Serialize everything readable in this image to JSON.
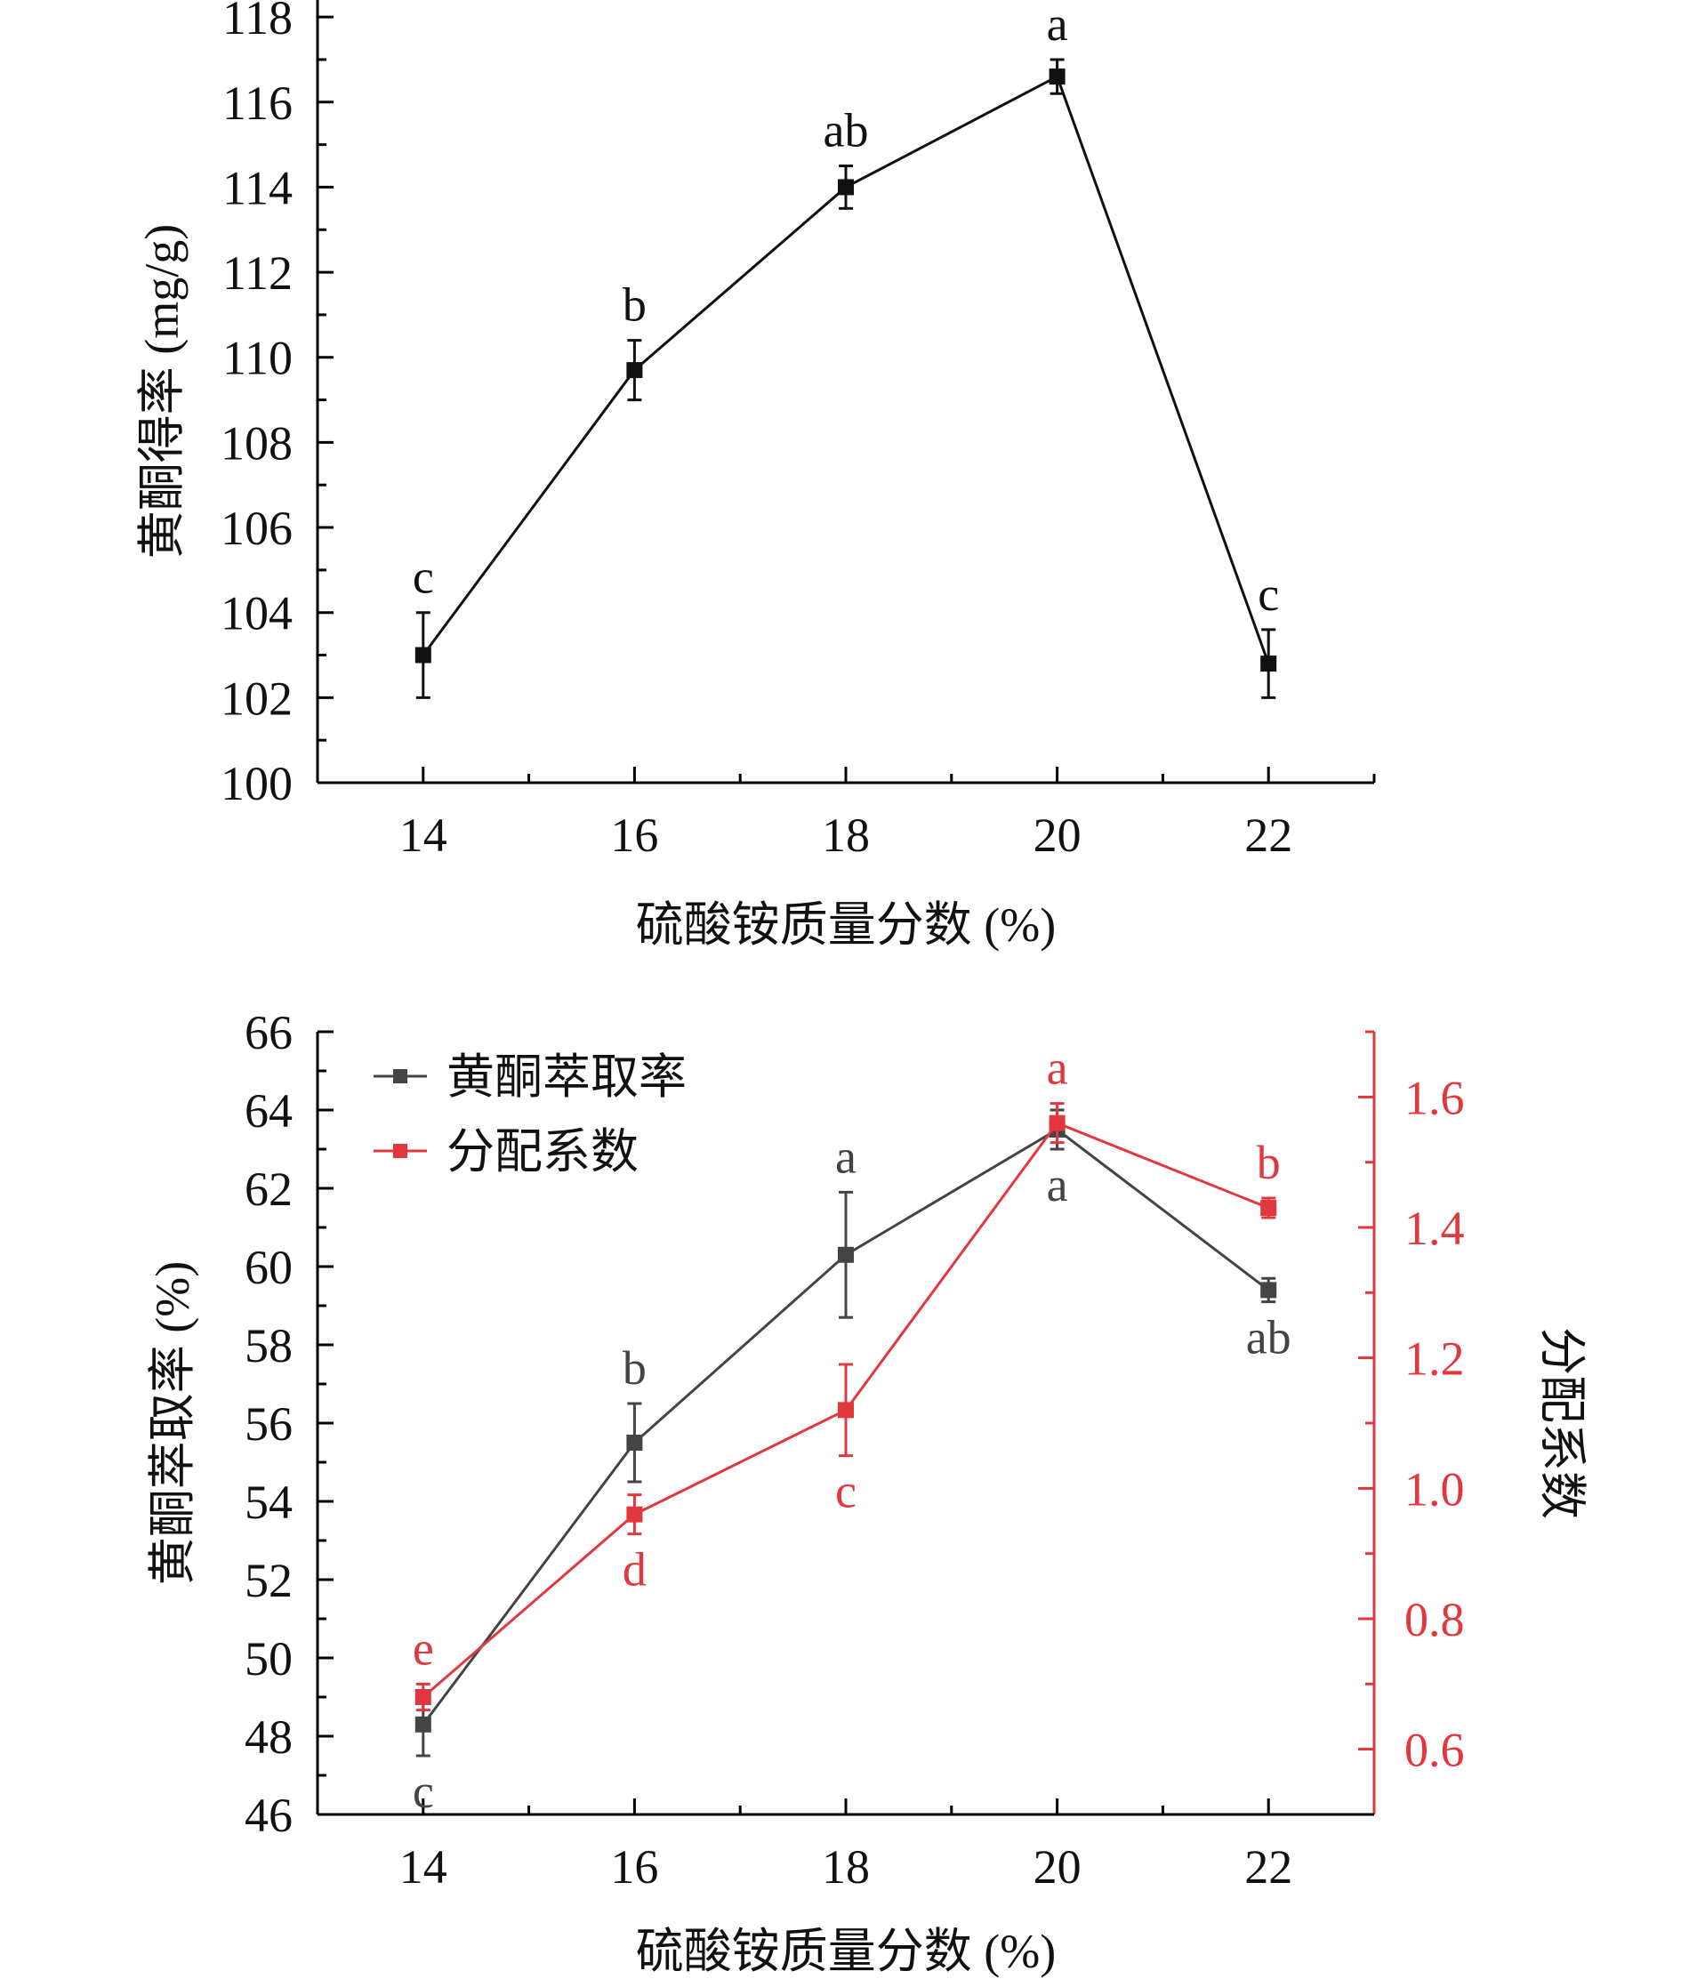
{
  "colors": {
    "axis": "#000000",
    "black": "#111111",
    "gray": "#444444",
    "red": "#E2373F"
  },
  "chart_data": [
    {
      "type": "line",
      "xlabel": "硫酸铵质量分数 (%)",
      "ylabel": "黄酮得率 (mg/g)",
      "x": [
        14,
        16,
        18,
        20,
        22
      ],
      "xlim": [
        13,
        23
      ],
      "ylim": [
        100,
        118.4
      ],
      "xticks": [
        "14",
        "16",
        "18",
        "20",
        "22"
      ],
      "yticks": [
        "100",
        "102",
        "104",
        "106",
        "108",
        "110",
        "112",
        "114",
        "116",
        "118"
      ],
      "series": [
        {
          "values": [
            103.0,
            109.7,
            114.0,
            116.6,
            102.8
          ],
          "errors": [
            1.0,
            0.7,
            0.5,
            0.4,
            0.8
          ],
          "labels": [
            "c",
            "b",
            "ab",
            "a",
            "c"
          ],
          "color": "black"
        }
      ]
    },
    {
      "type": "line",
      "xlabel": "硫酸铵质量分数 (%)",
      "ylabel": "黄酮萃取率 (%)",
      "y2label": "分配系数",
      "x": [
        14,
        16,
        18,
        20,
        22
      ],
      "xlim": [
        13,
        23
      ],
      "ylim": [
        46,
        66
      ],
      "y2lim": [
        0.5,
        1.7
      ],
      "xticks": [
        "14",
        "16",
        "18",
        "20",
        "22"
      ],
      "yticks": [
        "46",
        "48",
        "50",
        "52",
        "54",
        "56",
        "58",
        "60",
        "62",
        "64",
        "66"
      ],
      "y2ticks": [
        "0.6",
        "0.8",
        "1.0",
        "1.2",
        "1.4",
        "1.6"
      ],
      "legend_position": "top-left",
      "series": [
        {
          "name": "黄酮萃取率",
          "axis": "left",
          "values": [
            48.3,
            55.5,
            60.3,
            63.5,
            59.4
          ],
          "errors": [
            0.8,
            1.0,
            1.6,
            0.5,
            0.3
          ],
          "labels": [
            "c",
            "b",
            "a",
            "a",
            "ab"
          ],
          "color": "gray"
        },
        {
          "name": "分配系数",
          "axis": "right",
          "values": [
            0.68,
            0.96,
            1.12,
            1.56,
            1.43
          ],
          "errors": [
            0.02,
            0.03,
            0.07,
            0.03,
            0.015
          ],
          "labels": [
            "e",
            "d",
            "c",
            "a",
            "b"
          ],
          "color": "red"
        }
      ]
    }
  ]
}
